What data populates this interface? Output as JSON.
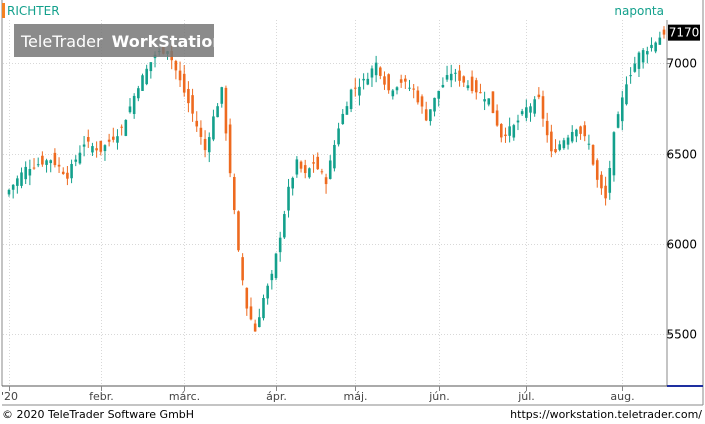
{
  "header": {
    "symbol": "RICHTER",
    "period": "naponta",
    "watermark_brand": "TeleTrader",
    "watermark_product": "WorkStation"
  },
  "footer": {
    "copyright": "© 2020 TeleTrader Software GmbH",
    "url": "https://workstation.teletrader.com/"
  },
  "colors": {
    "up": "#13a08c",
    "down": "#ee6a1f",
    "grid": "#d8d8d8",
    "axis": "#888888",
    "symbol_text": "#13a08c",
    "last_price_bg": "#000000",
    "marker_orange": "#f58220",
    "bottom_line": "#1e2fa0"
  },
  "chart_data": {
    "type": "candlestick",
    "y_axis_position": "right",
    "ylim": [
      5220,
      7240
    ],
    "yticks": [
      5500,
      6000,
      6500,
      7000
    ],
    "ytick_labels": [
      "5500",
      "6000",
      "6500",
      "7000"
    ],
    "last_price": 7170,
    "last_price_label": "7170",
    "n_bars": 158,
    "months": [
      {
        "label": "'20",
        "bar_index": 0
      },
      {
        "label": "febr.",
        "bar_index": 22
      },
      {
        "label": "márc.",
        "bar_index": 42
      },
      {
        "label": "ápr.",
        "bar_index": 64
      },
      {
        "label": "máj.",
        "bar_index": 83
      },
      {
        "label": "jún.",
        "bar_index": 103
      },
      {
        "label": "júl.",
        "bar_index": 124
      },
      {
        "label": "aug.",
        "bar_index": 147
      }
    ],
    "anchors": [
      [
        0,
        6300
      ],
      [
        4,
        6420
      ],
      [
        10,
        6470
      ],
      [
        14,
        6380
      ],
      [
        18,
        6560
      ],
      [
        22,
        6520
      ],
      [
        27,
        6640
      ],
      [
        31,
        6880
      ],
      [
        35,
        7050
      ],
      [
        38,
        7080
      ],
      [
        41,
        6900
      ],
      [
        44,
        6720
      ],
      [
        47,
        6520
      ],
      [
        49,
        6700
      ],
      [
        51,
        6850
      ],
      [
        53,
        6400
      ],
      [
        55,
        5950
      ],
      [
        57,
        5650
      ],
      [
        59,
        5520
      ],
      [
        61,
        5700
      ],
      [
        63,
        5820
      ],
      [
        65,
        6050
      ],
      [
        67,
        6300
      ],
      [
        69,
        6450
      ],
      [
        71,
        6380
      ],
      [
        73,
        6450
      ],
      [
        76,
        6350
      ],
      [
        79,
        6650
      ],
      [
        82,
        6850
      ],
      [
        85,
        6900
      ],
      [
        88,
        7000
      ],
      [
        91,
        6850
      ],
      [
        94,
        6900
      ],
      [
        97,
        6850
      ],
      [
        100,
        6700
      ],
      [
        103,
        6850
      ],
      [
        106,
        6950
      ],
      [
        109,
        6900
      ],
      [
        112,
        6850
      ],
      [
        115,
        6800
      ],
      [
        118,
        6600
      ],
      [
        121,
        6650
      ],
      [
        124,
        6750
      ],
      [
        127,
        6800
      ],
      [
        130,
        6500
      ],
      [
        133,
        6580
      ],
      [
        136,
        6650
      ],
      [
        139,
        6550
      ],
      [
        141,
        6350
      ],
      [
        143,
        6250
      ],
      [
        145,
        6600
      ],
      [
        148,
        6900
      ],
      [
        151,
        7050
      ],
      [
        154,
        7100
      ],
      [
        157,
        7170
      ]
    ]
  }
}
